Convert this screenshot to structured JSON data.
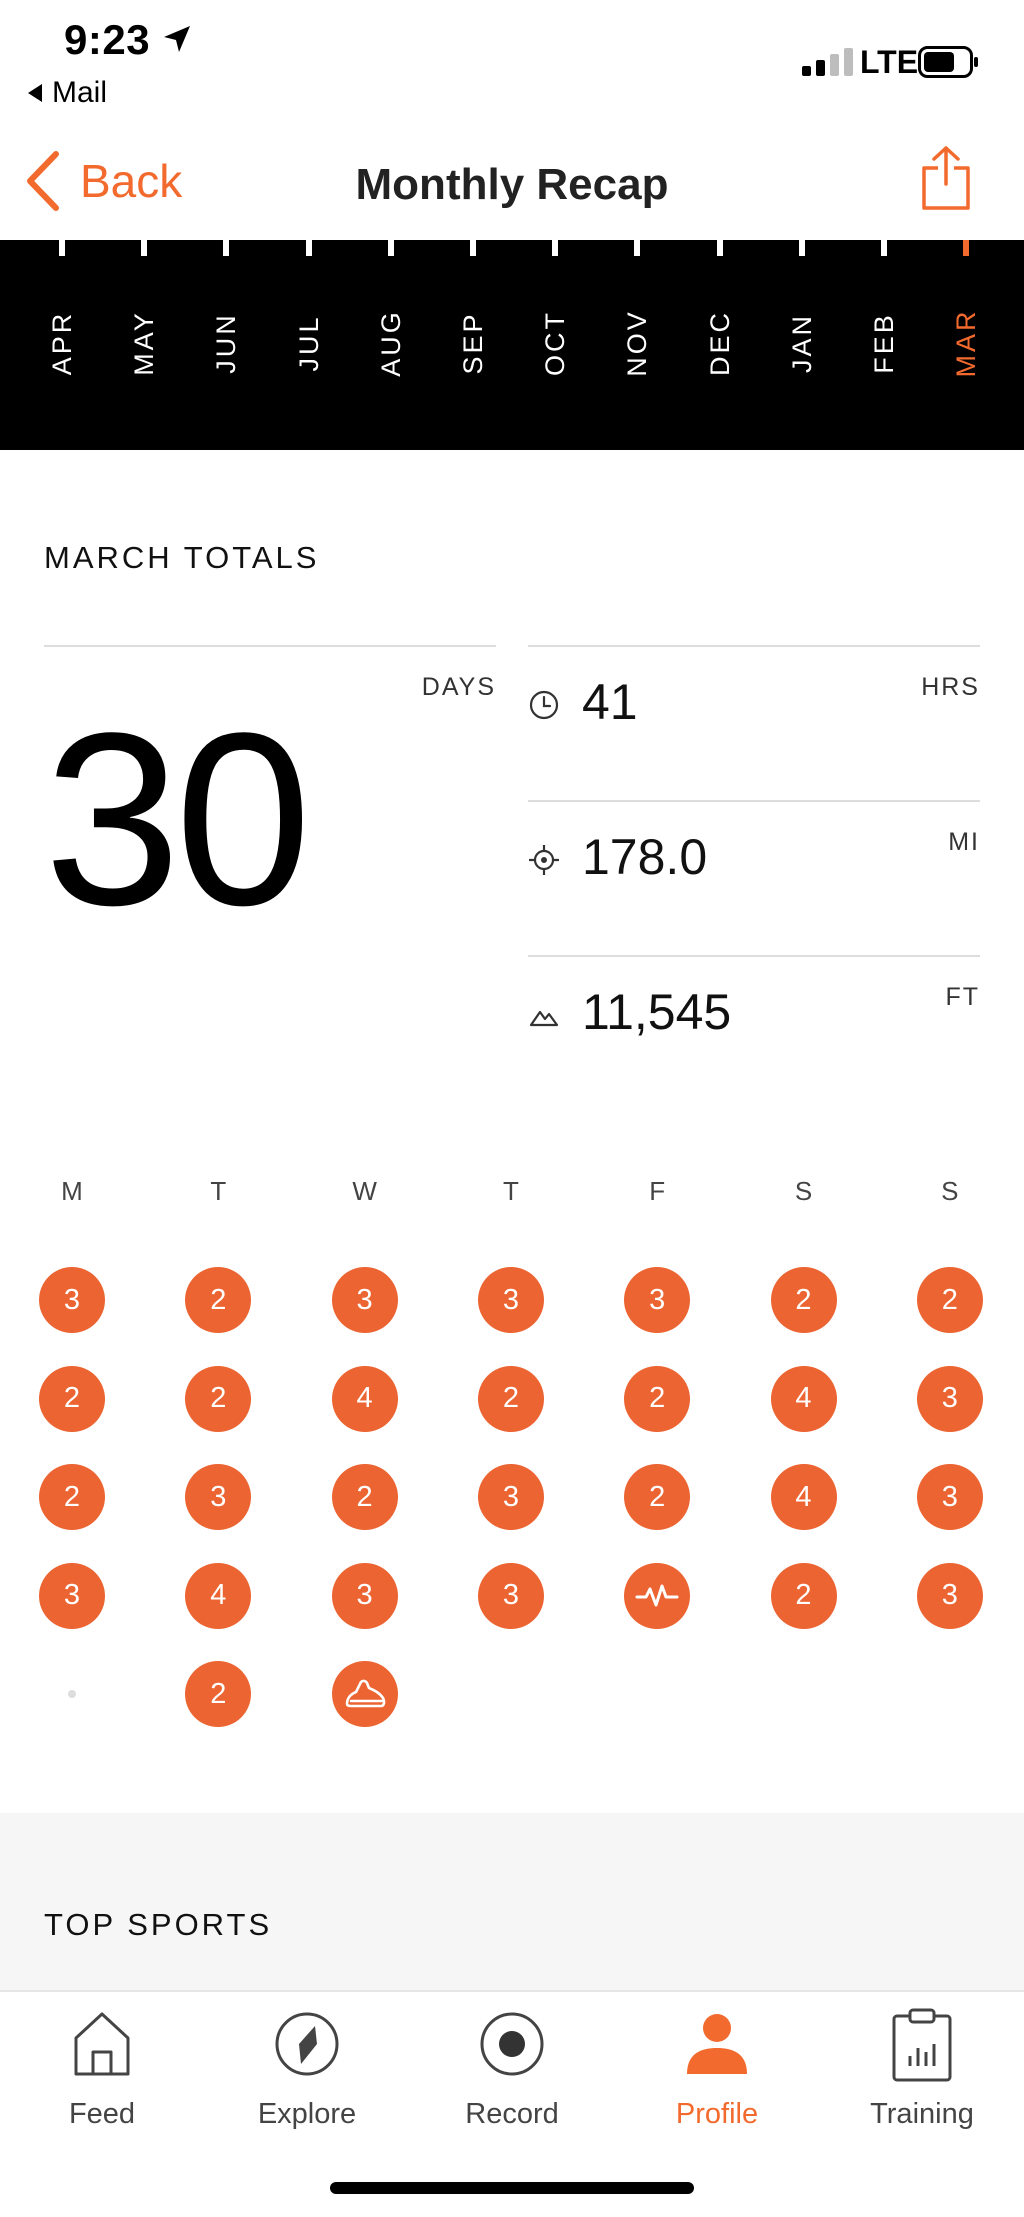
{
  "status": {
    "time": "9:23",
    "back_app": "Mail",
    "network": "LTE"
  },
  "nav": {
    "back_label": "Back",
    "title": "Monthly Recap"
  },
  "months": [
    "APR",
    "MAY",
    "JUN",
    "JUL",
    "AUG",
    "SEP",
    "OCT",
    "NOV",
    "DEC",
    "JAN",
    "FEB",
    "MAR"
  ],
  "active_month": "MAR",
  "totals": {
    "heading": "MARCH TOTALS",
    "days": {
      "value": "30",
      "unit": "DAYS"
    },
    "time": {
      "value": "41",
      "unit": "HRS",
      "icon": "clock-icon"
    },
    "distance": {
      "value": "178.0",
      "unit": "MI",
      "icon": "target-icon"
    },
    "elevation": {
      "value": "11,545",
      "unit": "FT",
      "icon": "mountain-icon"
    }
  },
  "calendar": {
    "weekdays": [
      "M",
      "T",
      "W",
      "T",
      "F",
      "S",
      "S"
    ],
    "weeks": [
      [
        "3",
        "2",
        "3",
        "3",
        "3",
        "2",
        "2"
      ],
      [
        "2",
        "2",
        "4",
        "2",
        "2",
        "4",
        "3"
      ],
      [
        "2",
        "3",
        "2",
        "3",
        "2",
        "4",
        "3"
      ],
      [
        "3",
        "4",
        "3",
        "3",
        "activity-icon",
        "2",
        "3"
      ],
      [
        "",
        "2",
        "shoe-icon"
      ]
    ]
  },
  "top_sports": {
    "heading": "TOP SPORTS"
  },
  "tabs": [
    {
      "label": "Feed",
      "icon": "home-icon"
    },
    {
      "label": "Explore",
      "icon": "compass-icon"
    },
    {
      "label": "Record",
      "icon": "record-icon"
    },
    {
      "label": "Profile",
      "icon": "profile-icon",
      "active": true
    },
    {
      "label": "Training",
      "icon": "clipboard-chart-icon"
    }
  ],
  "colors": {
    "accent": "#f26a2d",
    "day_circle": "#ec6431",
    "strip": "#000000"
  }
}
